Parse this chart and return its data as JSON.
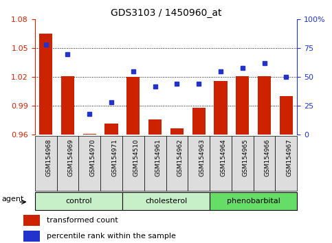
{
  "title": "GDS3103 / 1450960_at",
  "samples": [
    "GSM154968",
    "GSM154969",
    "GSM154970",
    "GSM154971",
    "GSM154510",
    "GSM154961",
    "GSM154962",
    "GSM154963",
    "GSM154964",
    "GSM154965",
    "GSM154966",
    "GSM154967"
  ],
  "red_values": [
    1.065,
    1.021,
    0.961,
    0.972,
    1.02,
    0.976,
    0.967,
    0.988,
    1.016,
    1.021,
    1.021,
    1.0
  ],
  "blue_values": [
    78,
    70,
    18,
    28,
    55,
    42,
    44,
    44,
    55,
    58,
    62,
    50
  ],
  "groups": [
    {
      "label": "control",
      "start": 0,
      "end": 4,
      "color": "#c8f0c8"
    },
    {
      "label": "cholesterol",
      "start": 4,
      "end": 8,
      "color": "#c8f0c8"
    },
    {
      "label": "phenobarbital",
      "start": 8,
      "end": 12,
      "color": "#66dd66"
    }
  ],
  "ylim_left": [
    0.96,
    1.08
  ],
  "ylim_right": [
    0,
    100
  ],
  "yticks_left": [
    0.96,
    0.99,
    1.02,
    1.05,
    1.08
  ],
  "yticks_right": [
    0,
    25,
    50,
    75,
    100
  ],
  "ytick_labels_right": [
    "0",
    "25",
    "50",
    "75",
    "100%"
  ],
  "red_color": "#cc2200",
  "blue_color": "#2233cc",
  "bar_width": 0.6,
  "bg_color": "#ffffff",
  "tick_label_color_left": "#cc2200",
  "tick_label_color_right": "#2233cc",
  "legend_red": "transformed count",
  "legend_blue": "percentile rank within the sample",
  "xtick_bg": "#dddddd",
  "grid_yticks": [
    0.99,
    1.02,
    1.05
  ]
}
